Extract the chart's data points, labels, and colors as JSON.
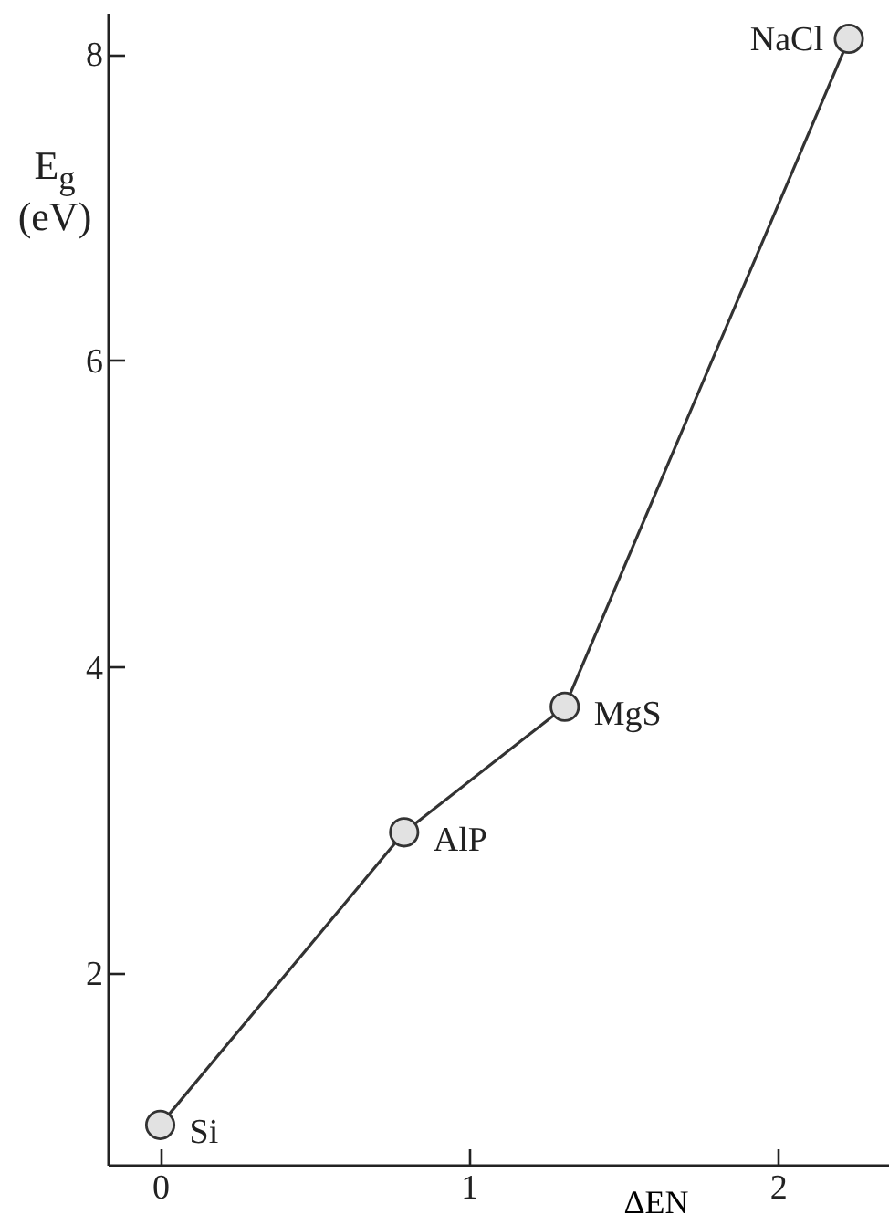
{
  "chart_data": {
    "type": "line",
    "xlabel": "ΔEN",
    "ylabel": "E$_{g}$ (eV)",
    "x": [
      0,
      0.79,
      1.31,
      2.23
    ],
    "series": [
      {
        "color": "#333333",
        "values": [
          1.01,
          2.92,
          3.74,
          8.1
        ]
      }
    ],
    "xlim": [
      -0.17,
      2.36
    ],
    "ylim": [
      0.75,
      8.27
    ],
    "xticks": [
      0,
      1,
      2
    ],
    "yticks": [
      2,
      4,
      6,
      8
    ],
    "marker": "circle",
    "line_style": "solid",
    "annotations": [
      {
        "text": "Si",
        "x": 0,
        "y": 1.01
      },
      {
        "text": "AlP",
        "x": 0.79,
        "y": 2.92
      },
      {
        "text": "MgS",
        "x": 1.31,
        "y": 3.74
      },
      {
        "text": "NaCl",
        "x": 2.23,
        "y": 8.1
      }
    ]
  }
}
